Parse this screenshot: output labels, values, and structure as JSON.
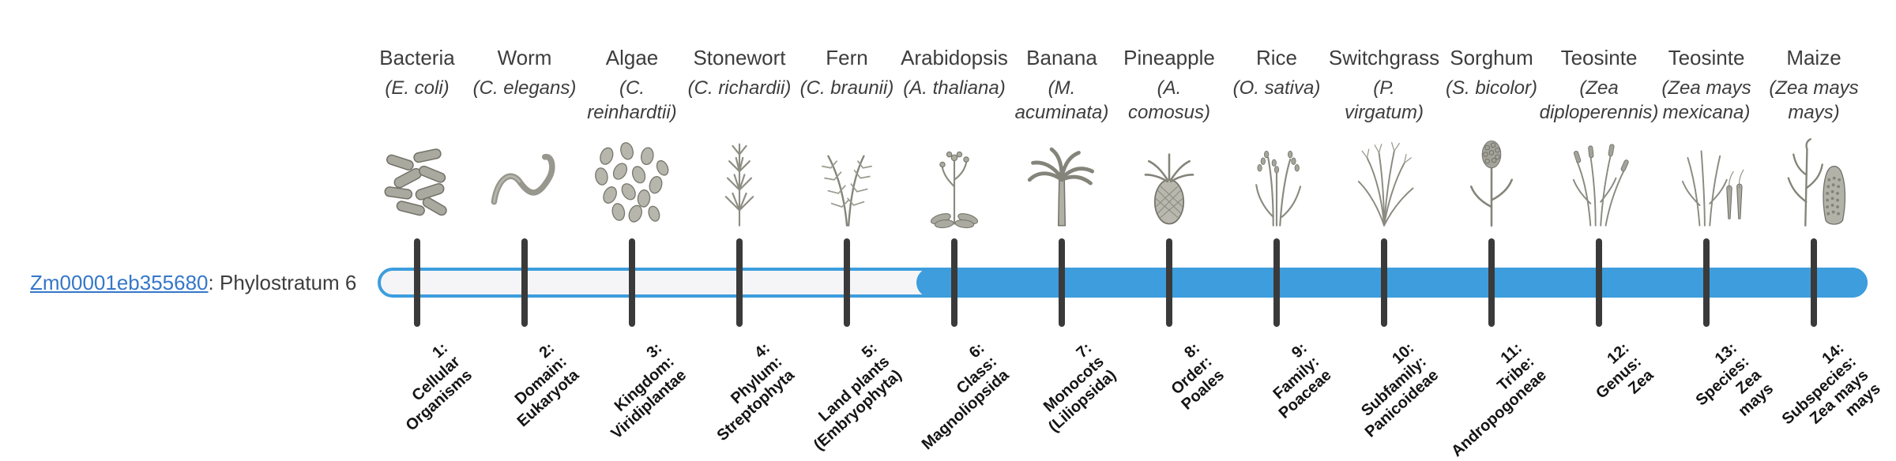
{
  "colors": {
    "bar_blue": "#3d9ddd",
    "bar_empty": "#f5f5f7",
    "tick": "#3a3a3a",
    "link_blue": "#3577c9",
    "text": "#3d3d3d",
    "label_dark": "#141414"
  },
  "gene": {
    "id": "Zm00001eb355680",
    "suffix": ": Phylostratum 6",
    "phylostratum": 6
  },
  "bar": {
    "total_strata": 14,
    "filled_from_stratum": 6
  },
  "organisms": [
    {
      "stratum": 1,
      "common": "Bacteria",
      "sci": "(E. coli)",
      "icon": "bacteria-icon",
      "stratum_label": "1:\nCellular\nOrganisms"
    },
    {
      "stratum": 2,
      "common": "Worm",
      "sci": "(C. elegans)",
      "icon": "worm-icon",
      "stratum_label": "2:\nDomain:\nEukaryota"
    },
    {
      "stratum": 3,
      "common": "Algae",
      "sci": "(C.\nreinhardtii)",
      "icon": "algae-icon",
      "stratum_label": "3:\nKingdom:\nViridiplantae"
    },
    {
      "stratum": 4,
      "common": "Stonewort",
      "sci": "(C. richardii)",
      "icon": "stonewort-icon",
      "stratum_label": "4:\nPhylum:\nStreptophyta"
    },
    {
      "stratum": 5,
      "common": "Fern",
      "sci": "(C. braunii)",
      "icon": "fern-icon",
      "stratum_label": "5:\nLand plants\n(Embryophyta)"
    },
    {
      "stratum": 6,
      "common": "Arabidopsis",
      "sci": "(A. thaliana)",
      "icon": "arabidopsis-icon",
      "stratum_label": "6:\nClass:\nMagnoliopsida"
    },
    {
      "stratum": 7,
      "common": "Banana",
      "sci": "(M.\nacuminata)",
      "icon": "banana-icon",
      "stratum_label": "7:\nMonocots\n(Liliopsida)"
    },
    {
      "stratum": 8,
      "common": "Pineapple",
      "sci": "(A.\ncomosus)",
      "icon": "pineapple-icon",
      "stratum_label": "8:\nOrder:\nPoales"
    },
    {
      "stratum": 9,
      "common": "Rice",
      "sci": "(O. sativa)",
      "icon": "rice-icon",
      "stratum_label": "9:\nFamily:\nPoaceae"
    },
    {
      "stratum": 10,
      "common": "Switchgrass",
      "sci": "(P.\nvirgatum)",
      "icon": "switchgrass-icon",
      "stratum_label": "10:\nSubfamily:\nPanicoideae"
    },
    {
      "stratum": 11,
      "common": "Sorghum",
      "sci": "(S. bicolor)",
      "icon": "sorghum-icon",
      "stratum_label": "11:\nTribe:\nAndropogoneae"
    },
    {
      "stratum": 12,
      "common": "Teosinte",
      "sci": "(Zea\ndiploperennis)",
      "icon": "teosinte-diploperennis-icon",
      "stratum_label": "12:\nGenus:\nZea"
    },
    {
      "stratum": 13,
      "common": "Teosinte",
      "sci": "(Zea mays\nmexicana)",
      "icon": "teosinte-mexicana-icon",
      "stratum_label": "13:\nSpecies:\nZea\nmays"
    },
    {
      "stratum": 14,
      "common": "Maize",
      "sci": "(Zea mays\nmays)",
      "icon": "maize-icon",
      "stratum_label": "14:\nSubspecies:\nZea mays\nmays"
    }
  ]
}
